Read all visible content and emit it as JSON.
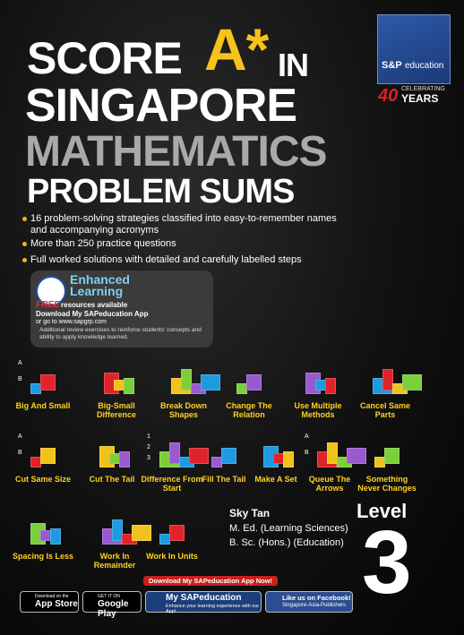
{
  "title": {
    "line1": "SCORE",
    "star": "A*",
    "in": "IN",
    "line2": "SINGAPORE",
    "line3": "MATHEMATICS",
    "line4": "PROBLEM SUMS"
  },
  "logo": {
    "brand_top": "S&P",
    "brand": "education",
    "years_number": "40",
    "celebrating": "CELEBRATING",
    "years": "YEARS"
  },
  "bullets": [
    "16 problem-solving strategies classified into easy-to-remember names and accompanying acronyms",
    "More than 250 practice questions",
    "Full worked solutions with detailed and carefully labelled steps"
  ],
  "promo": {
    "badge": "Enhanced Learning",
    "free": "FREE",
    "free_rest": "resources available",
    "download": "Download My SAPeducation App",
    "website": "or go to www.sapgrp.com",
    "note": "Additional review exercises to reinforce students' concepts and ability to apply knowledge learned."
  },
  "strategies": [
    {
      "label": "Big And Small",
      "icon_labels": [
        "A",
        "B"
      ]
    },
    {
      "label": "Big-Small Difference",
      "icon_labels": []
    },
    {
      "label": "Break Down Shapes",
      "icon_labels": []
    },
    {
      "label": "Change The Relation",
      "icon_labels": []
    },
    {
      "label": "Use Multiple Methods",
      "icon_labels": []
    },
    {
      "label": "Cancel Same Parts",
      "icon_labels": []
    },
    {
      "label": "Cut Same Size",
      "icon_labels": [
        "A",
        "B"
      ]
    },
    {
      "label": "Cut The Tail",
      "icon_labels": []
    },
    {
      "label": "Difference From Start",
      "icon_labels": [
        "1",
        "2",
        "3"
      ]
    },
    {
      "label": "Fill The Tail",
      "icon_labels": []
    },
    {
      "label": "Make A Set",
      "icon_labels": []
    },
    {
      "label": "Queue The Arrows",
      "icon_labels": [
        "A",
        "B"
      ]
    },
    {
      "label": "Something Never Changes",
      "icon_labels": []
    },
    {
      "label": "Spacing Is Less",
      "icon_labels": []
    },
    {
      "label": "Work In Remainder",
      "icon_labels": []
    },
    {
      "label": "Work In Units",
      "icon_labels": []
    }
  ],
  "author": {
    "name": "Sky Tan",
    "degrees": [
      "M. Ed. (Learning Sciences)",
      "B. Sc. (Hons.) (Education)"
    ]
  },
  "level": {
    "word": "Level",
    "number": "3"
  },
  "footer": {
    "banner": "Download My SAPeducation App Now!",
    "app_store_top": "Download on the",
    "app_store": "App Store",
    "google_play_top": "GET IT ON",
    "google_play": "Google Play",
    "app_name": "My SAPeducation",
    "app_tagline": "Enhance your learning experience with our App!",
    "facebook": "Like us on Facebook!",
    "facebook_page": "Singapore-Asia-Publishers"
  }
}
